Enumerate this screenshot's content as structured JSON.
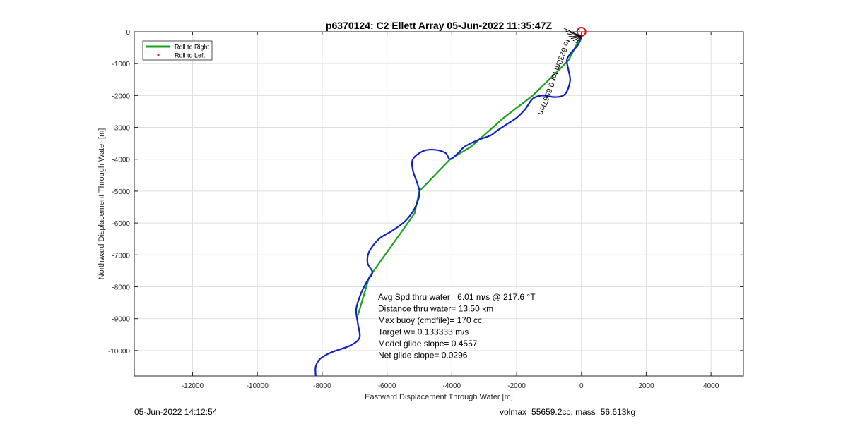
{
  "chart_data": {
    "type": "line",
    "title": "p6370124: C2 Ellett Array 05-Jun-2022 11:35:47Z",
    "xlabel": "Eastward Displacement Through Water [m]",
    "ylabel": "Northward Displacement Through Water [m]",
    "xlim": [
      -13800,
      5000
    ],
    "ylim": [
      -10800,
      0
    ],
    "xticks": [
      -12000,
      -10000,
      -8000,
      -6000,
      -4000,
      -2000,
      0,
      2000,
      4000
    ],
    "xtick_labels": [
      "-12000",
      "-10000",
      "-8000",
      "-6000",
      "-4000",
      "-2000",
      "0",
      "2000",
      "4000"
    ],
    "yticks": [
      0,
      -1000,
      -2000,
      -3000,
      -4000,
      -5000,
      -6000,
      -7000,
      -8000,
      -9000,
      -10000
    ],
    "ytick_labels": [
      "0",
      "-1000",
      "-2000",
      "-3000",
      "-4000",
      "-5000",
      "-6000",
      "-7000",
      "-8000",
      "-9000",
      "-10000"
    ],
    "grid": true,
    "legend_position": "top-left",
    "legend": [
      {
        "label": "Roll to Right",
        "color": "#1aa01a",
        "style": "line"
      },
      {
        "label": "Roll to Left",
        "color": "#e01010",
        "style": "marker"
      }
    ],
    "series": [
      {
        "name": "Roll to Right",
        "color": "#1aa01a",
        "points": [
          [
            -50,
            -200
          ],
          [
            -400,
            -900
          ],
          [
            -1500,
            -2000
          ],
          [
            -2400,
            -2700
          ],
          [
            -3400,
            -3600
          ],
          [
            -4050,
            -4000
          ],
          [
            -5000,
            -5000
          ],
          [
            -5150,
            -5700
          ],
          [
            -6550,
            -7700
          ],
          [
            -6900,
            -8900
          ]
        ]
      },
      {
        "name": "",
        "color": "#1020c8",
        "points": [
          [
            0,
            -150
          ],
          [
            -100,
            -400
          ],
          [
            -350,
            -700
          ],
          [
            -450,
            -900
          ],
          [
            -400,
            -1200
          ],
          [
            -350,
            -1550
          ],
          [
            -500,
            -1950
          ],
          [
            -800,
            -2050
          ],
          [
            -1200,
            -2000
          ],
          [
            -1500,
            -2100
          ],
          [
            -1750,
            -2450
          ],
          [
            -2000,
            -2700
          ],
          [
            -2300,
            -2900
          ],
          [
            -2600,
            -3100
          ],
          [
            -2800,
            -3250
          ],
          [
            -3200,
            -3400
          ],
          [
            -3600,
            -3600
          ],
          [
            -3800,
            -3800
          ],
          [
            -4050,
            -4000
          ],
          [
            -4200,
            -3800
          ],
          [
            -4550,
            -3700
          ],
          [
            -4900,
            -3750
          ],
          [
            -5200,
            -4000
          ],
          [
            -5200,
            -4350
          ],
          [
            -5050,
            -4800
          ],
          [
            -5000,
            -5100
          ],
          [
            -5150,
            -5550
          ],
          [
            -5450,
            -5950
          ],
          [
            -5850,
            -6250
          ],
          [
            -6250,
            -6500
          ],
          [
            -6550,
            -6900
          ],
          [
            -6600,
            -7250
          ],
          [
            -6450,
            -7550
          ],
          [
            -6600,
            -7800
          ],
          [
            -6800,
            -8200
          ],
          [
            -6950,
            -8700
          ],
          [
            -6900,
            -9150
          ],
          [
            -6850,
            -9600
          ],
          [
            -7150,
            -9850
          ],
          [
            -7700,
            -10050
          ],
          [
            -8050,
            -10250
          ],
          [
            -8200,
            -10500
          ],
          [
            -8200,
            -10800
          ]
        ]
      },
      {
        "name": "Roll to Left",
        "color": "#e01010",
        "points": [
          [
            0,
            0
          ]
        ]
      }
    ],
    "annotations": {
      "track_label": "to 6230m for 0.6567km",
      "stats": [
        "Avg Spd thru water=  6.01 m/s @ 217.6 °T",
        "Distance thru water= 13.50 km",
        "Max buoy (cmdfile)= 170 cc",
        "Target w= 0.133333 m/s",
        "Model glide slope= 0.4557",
        "Net glide slope= 0.0296"
      ]
    }
  },
  "footer": {
    "timestamp": "05-Jun-2022 14:12:54",
    "mass_info": "volmax=55659.2cc, mass=56.613kg"
  }
}
